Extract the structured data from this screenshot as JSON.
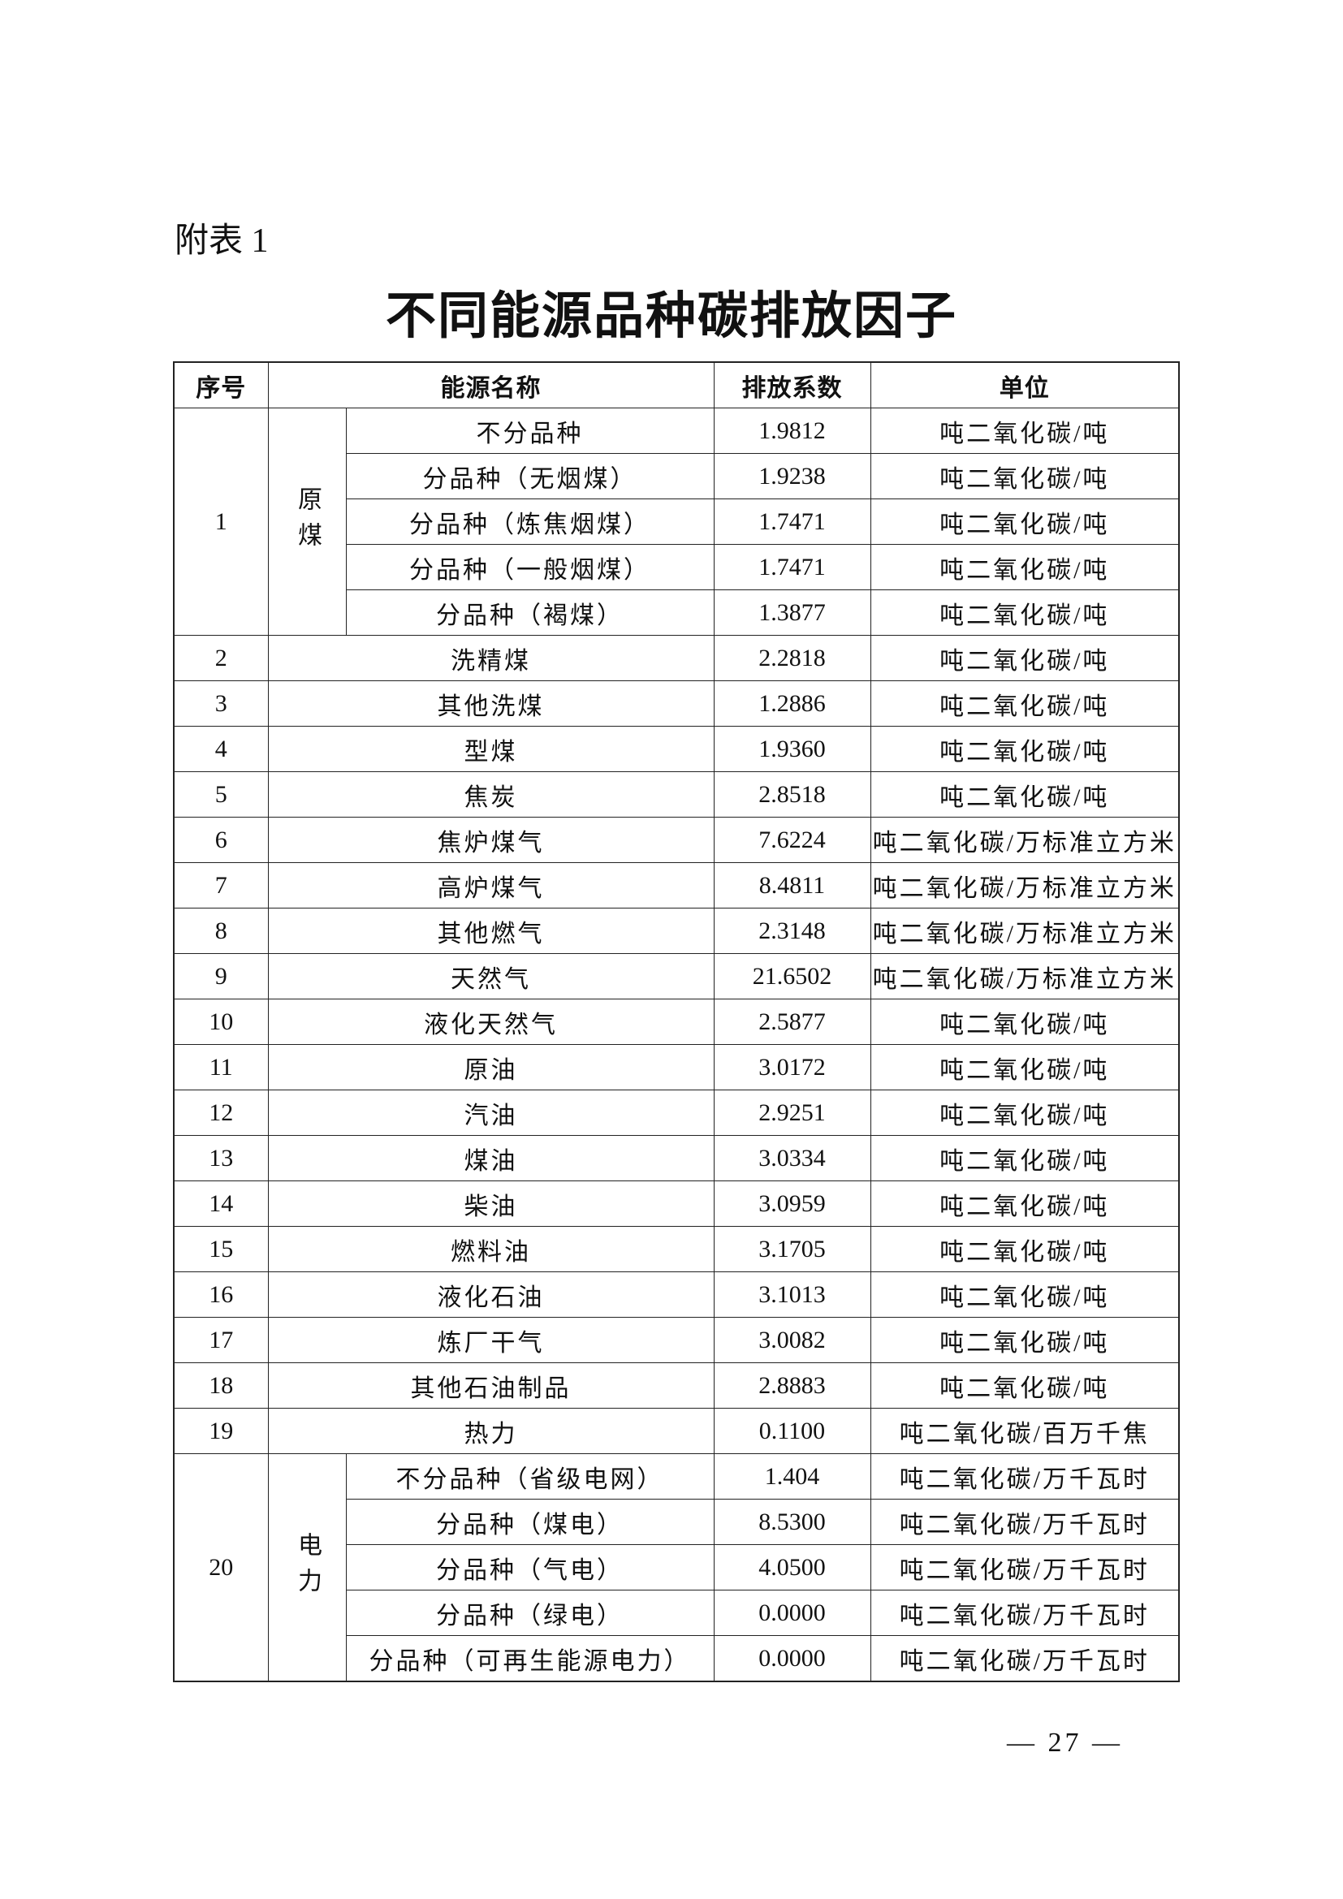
{
  "appendix_label": "附表 1",
  "title": "不同能源品种碳排放因子",
  "table": {
    "headers": [
      "序号",
      "能源名称",
      "排放系数",
      "单位"
    ],
    "groups": [
      {
        "no": "1",
        "category": "原煤",
        "rows": [
          {
            "name": "不分品种",
            "factor": "1.9812",
            "unit": "吨二氧化碳/吨"
          },
          {
            "name": "分品种（无烟煤）",
            "factor": "1.9238",
            "unit": "吨二氧化碳/吨"
          },
          {
            "name": "分品种（炼焦烟煤）",
            "factor": "1.7471",
            "unit": "吨二氧化碳/吨"
          },
          {
            "name": "分品种（一般烟煤）",
            "factor": "1.7471",
            "unit": "吨二氧化碳/吨"
          },
          {
            "name": "分品种（褐煤）",
            "factor": "1.3877",
            "unit": "吨二氧化碳/吨"
          }
        ]
      }
    ],
    "rows": [
      {
        "no": "2",
        "name": "洗精煤",
        "factor": "2.2818",
        "unit": "吨二氧化碳/吨"
      },
      {
        "no": "3",
        "name": "其他洗煤",
        "factor": "1.2886",
        "unit": "吨二氧化碳/吨"
      },
      {
        "no": "4",
        "name": "型煤",
        "factor": "1.9360",
        "unit": "吨二氧化碳/吨"
      },
      {
        "no": "5",
        "name": "焦炭",
        "factor": "2.8518",
        "unit": "吨二氧化碳/吨"
      },
      {
        "no": "6",
        "name": "焦炉煤气",
        "factor": "7.6224",
        "unit": "吨二氧化碳/万标准立方米"
      },
      {
        "no": "7",
        "name": "高炉煤气",
        "factor": "8.4811",
        "unit": "吨二氧化碳/万标准立方米"
      },
      {
        "no": "8",
        "name": "其他燃气",
        "factor": "2.3148",
        "unit": "吨二氧化碳/万标准立方米"
      },
      {
        "no": "9",
        "name": "天然气",
        "factor": "21.6502",
        "unit": "吨二氧化碳/万标准立方米"
      },
      {
        "no": "10",
        "name": "液化天然气",
        "factor": "2.5877",
        "unit": "吨二氧化碳/吨"
      },
      {
        "no": "11",
        "name": "原油",
        "factor": "3.0172",
        "unit": "吨二氧化碳/吨"
      },
      {
        "no": "12",
        "name": "汽油",
        "factor": "2.9251",
        "unit": "吨二氧化碳/吨"
      },
      {
        "no": "13",
        "name": "煤油",
        "factor": "3.0334",
        "unit": "吨二氧化碳/吨"
      },
      {
        "no": "14",
        "name": "柴油",
        "factor": "3.0959",
        "unit": "吨二氧化碳/吨"
      },
      {
        "no": "15",
        "name": "燃料油",
        "factor": "3.1705",
        "unit": "吨二氧化碳/吨"
      },
      {
        "no": "16",
        "name": "液化石油",
        "factor": "3.1013",
        "unit": "吨二氧化碳/吨"
      },
      {
        "no": "17",
        "name": "炼厂干气",
        "factor": "3.0082",
        "unit": "吨二氧化碳/吨"
      },
      {
        "no": "18",
        "name": "其他石油制品",
        "factor": "2.8883",
        "unit": "吨二氧化碳/吨"
      },
      {
        "no": "19",
        "name": "热力",
        "factor": "0.1100",
        "unit": "吨二氧化碳/百万千焦"
      }
    ],
    "electricity": {
      "no": "20",
      "category": "电力",
      "rows": [
        {
          "name": "不分品种（省级电网）",
          "factor": "1.404",
          "unit": "吨二氧化碳/万千瓦时"
        },
        {
          "name": "分品种（煤电）",
          "factor": "8.5300",
          "unit": "吨二氧化碳/万千瓦时"
        },
        {
          "name": "分品种（气电）",
          "factor": "4.0500",
          "unit": "吨二氧化碳/万千瓦时"
        },
        {
          "name": "分品种（绿电）",
          "factor": "0.0000",
          "unit": "吨二氧化碳/万千瓦时"
        },
        {
          "name": "分品种（可再生能源电力）",
          "factor": "0.0000",
          "unit": "吨二氧化碳/万千瓦时"
        }
      ]
    }
  },
  "page_number": "— 27 —"
}
